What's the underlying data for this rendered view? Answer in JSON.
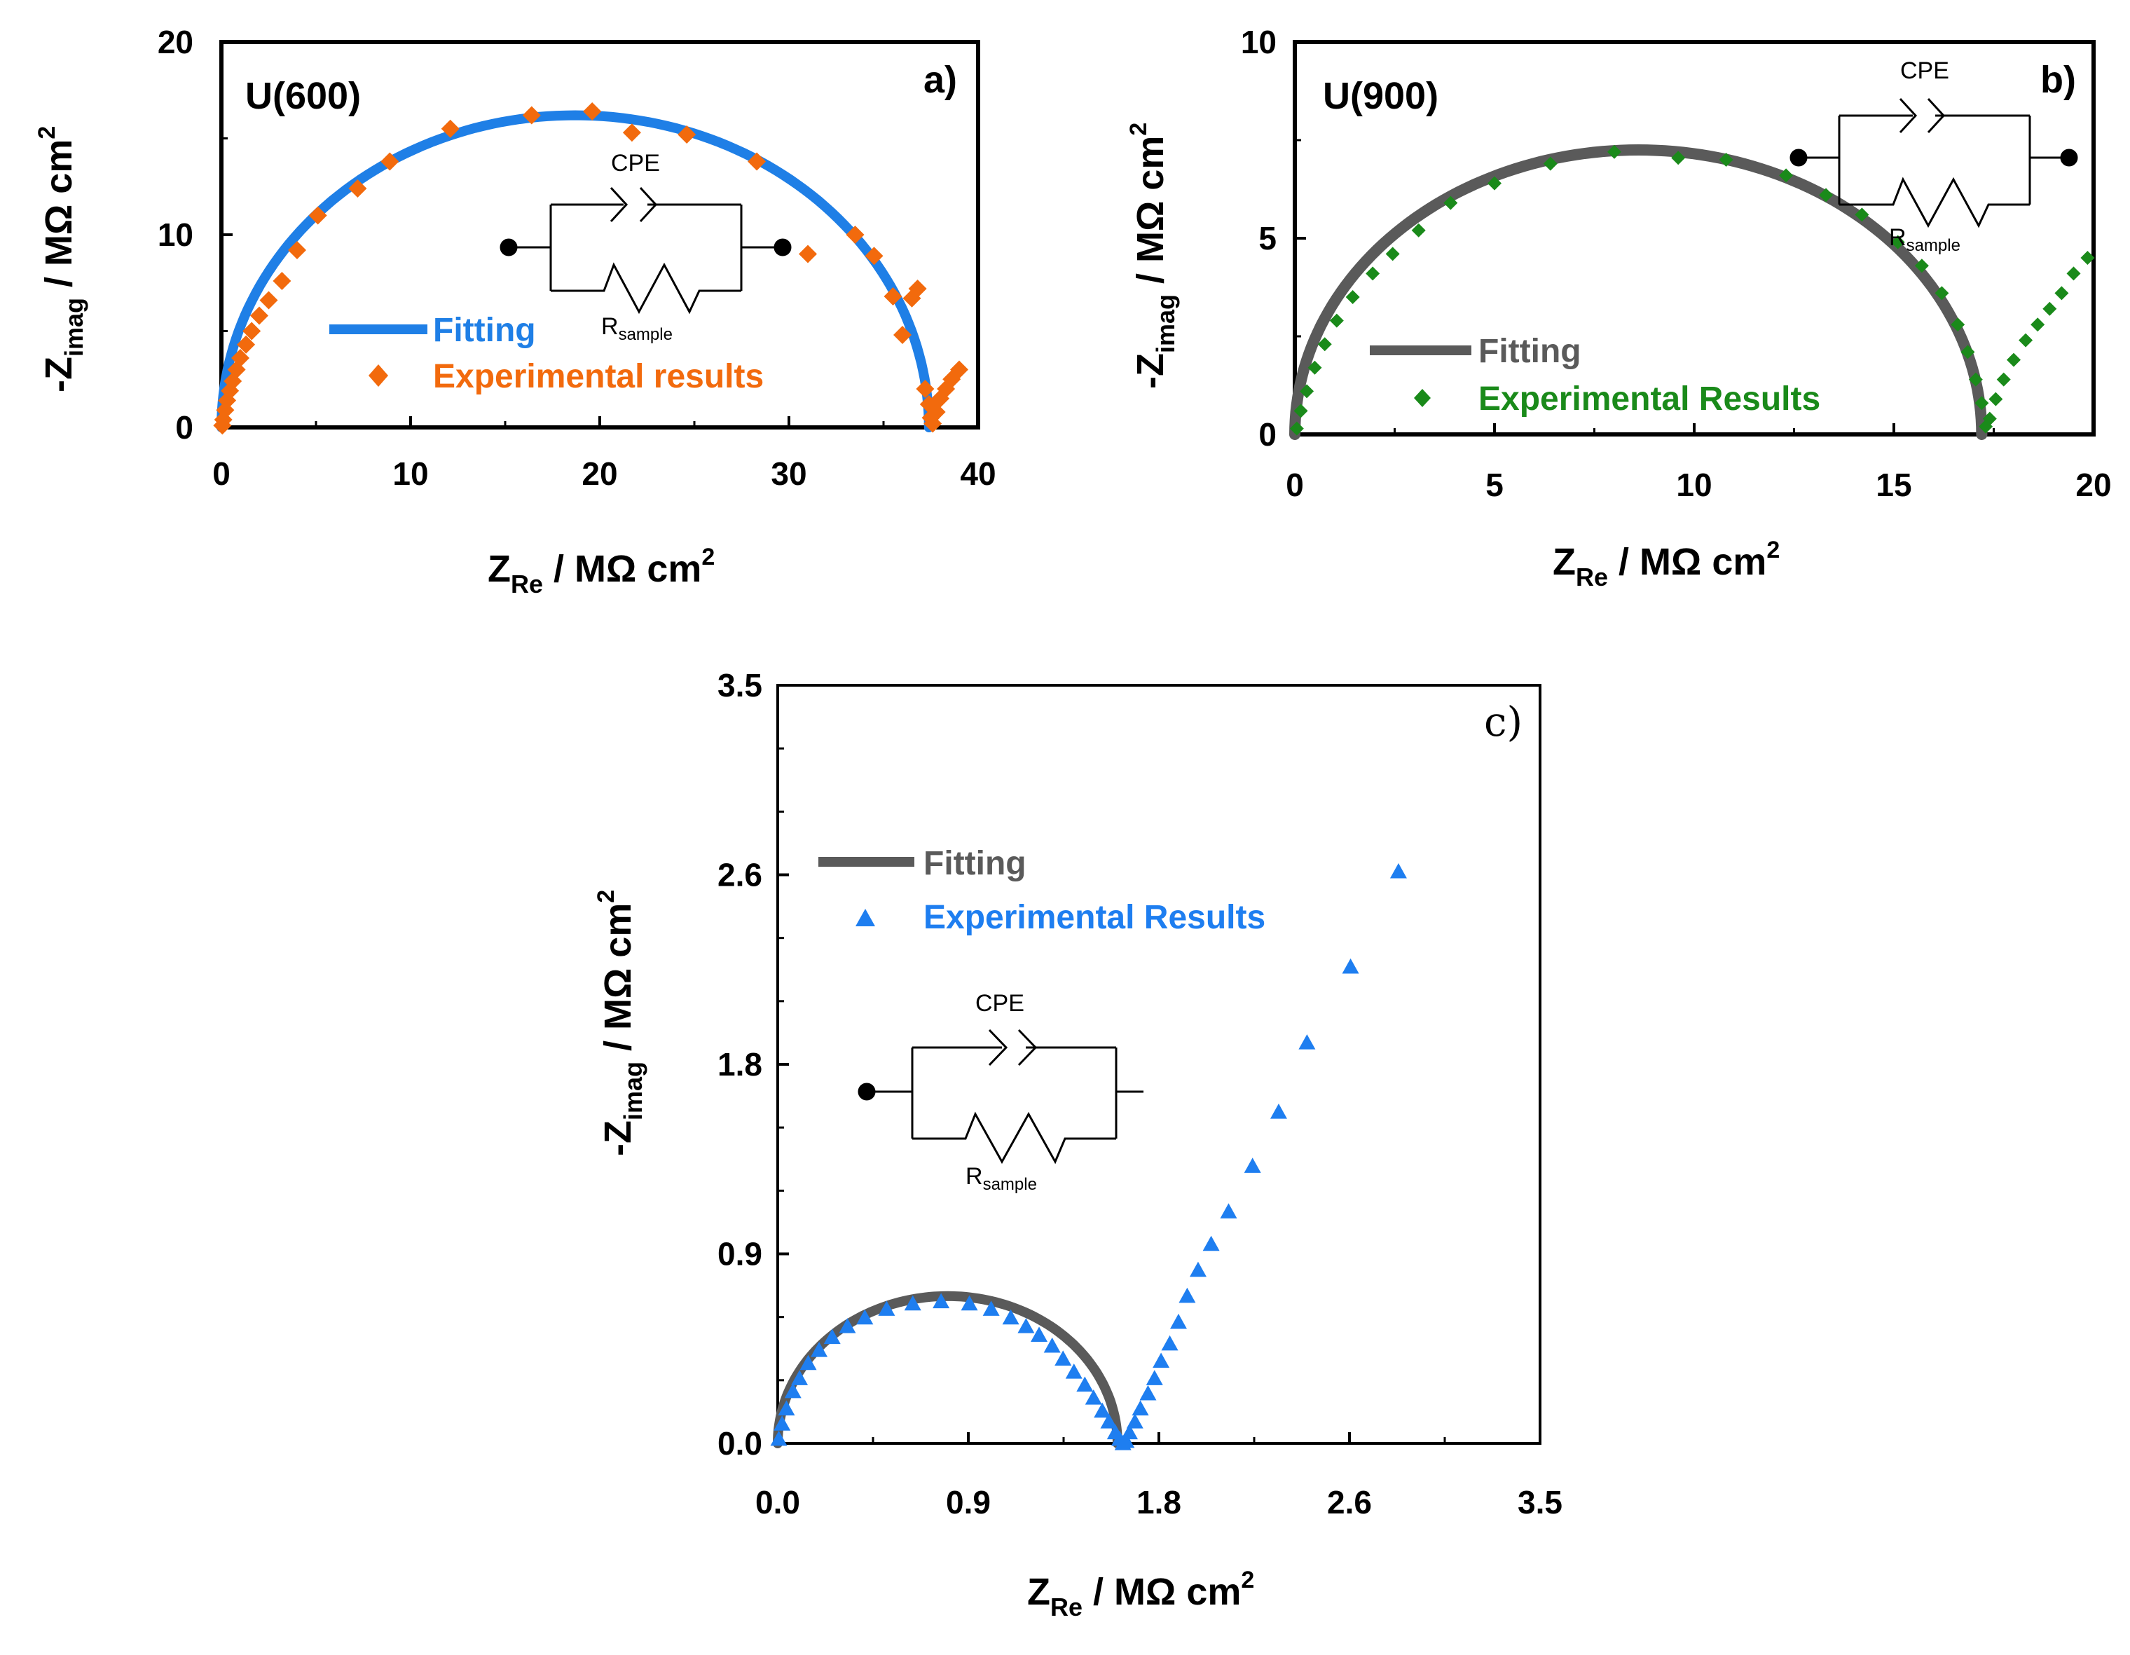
{
  "chart_data": [
    {
      "type": "scatter",
      "panel_label": "a)",
      "sample": "U(600)",
      "xlim": [
        0,
        40
      ],
      "ylim": [
        0,
        20
      ],
      "xticks": [
        "0",
        "10",
        "20",
        "30",
        "40"
      ],
      "yticks": [
        "0",
        "10",
        "20"
      ],
      "xlabel": {
        "main": "Z",
        "sub": "Re",
        "unit": " / MΩ cm",
        "sup": "2"
      },
      "ylabel": {
        "main": "-Z",
        "sub": "imag",
        "unit": " / MΩ cm",
        "sup": "2"
      },
      "fit": {
        "name": "Fitting",
        "color": "#1f7fe6",
        "center": 18.7,
        "radius": 18.7,
        "height": 16.2
      },
      "series": [
        {
          "name": "Experimental results",
          "color": "#f26a0d",
          "marker": "diamond",
          "points": [
            [
              0.05,
              0.1
            ],
            [
              0.1,
              0.4
            ],
            [
              0.2,
              0.9
            ],
            [
              0.3,
              1.4
            ],
            [
              0.45,
              1.9
            ],
            [
              0.6,
              2.4
            ],
            [
              0.8,
              3.0
            ],
            [
              1.0,
              3.6
            ],
            [
              1.3,
              4.3
            ],
            [
              1.6,
              5.0
            ],
            [
              2.0,
              5.8
            ],
            [
              2.5,
              6.6
            ],
            [
              3.2,
              7.6
            ],
            [
              4.0,
              9.2
            ],
            [
              5.1,
              11.0
            ],
            [
              7.2,
              12.4
            ],
            [
              8.9,
              13.8
            ],
            [
              12.1,
              15.5
            ],
            [
              16.4,
              16.2
            ],
            [
              19.6,
              16.4
            ],
            [
              21.7,
              15.3
            ],
            [
              24.6,
              15.2
            ],
            [
              28.3,
              13.8
            ],
            [
              31.0,
              9.0
            ],
            [
              33.5,
              10.0
            ],
            [
              34.5,
              8.9
            ],
            [
              35.5,
              6.8
            ],
            [
              36.0,
              4.8
            ],
            [
              36.5,
              6.7
            ],
            [
              36.8,
              7.2
            ],
            [
              37.2,
              2.0
            ],
            [
              37.4,
              1.2
            ],
            [
              37.5,
              0.5
            ],
            [
              37.6,
              0.2
            ],
            [
              37.8,
              0.8
            ],
            [
              38.0,
              1.5
            ],
            [
              38.3,
              2.0
            ],
            [
              38.6,
              2.5
            ],
            [
              39.0,
              3.0
            ]
          ]
        }
      ],
      "inset": {
        "element": "CPE",
        "resistor": {
          "main": "R",
          "sub": "sample"
        }
      }
    },
    {
      "type": "scatter",
      "panel_label": "b)",
      "sample": "U(900)",
      "xlim": [
        0,
        20
      ],
      "ylim": [
        0,
        10
      ],
      "xticks": [
        "0",
        "5",
        "10",
        "15",
        "20"
      ],
      "yticks": [
        "0",
        "5",
        "10"
      ],
      "xlabel": {
        "main": "Z",
        "sub": "Re",
        "unit": " / MΩ cm",
        "sup": "2"
      },
      "ylabel": {
        "main": "-Z",
        "sub": "imag",
        "unit": " / MΩ cm",
        "sup": "2"
      },
      "fit": {
        "name": "Fitting",
        "color": "#5a5a5a",
        "center": 8.6,
        "radius": 8.6,
        "height": 7.25
      },
      "series": [
        {
          "name": "Experimental Results",
          "color": "#1a8a1a",
          "marker": "diamond",
          "points": [
            [
              0.05,
              0.15
            ],
            [
              0.15,
              0.6
            ],
            [
              0.3,
              1.1
            ],
            [
              0.5,
              1.7
            ],
            [
              0.75,
              2.3
            ],
            [
              1.05,
              2.9
            ],
            [
              1.45,
              3.5
            ],
            [
              1.95,
              4.1
            ],
            [
              2.45,
              4.6
            ],
            [
              3.1,
              5.2
            ],
            [
              3.9,
              5.9
            ],
            [
              5.0,
              6.4
            ],
            [
              6.4,
              6.9
            ],
            [
              8.0,
              7.2
            ],
            [
              9.6,
              7.05
            ],
            [
              10.8,
              7.0
            ],
            [
              12.3,
              6.6
            ],
            [
              13.3,
              6.1
            ],
            [
              14.2,
              5.6
            ],
            [
              15.1,
              4.9
            ],
            [
              15.7,
              4.3
            ],
            [
              16.2,
              3.6
            ],
            [
              16.6,
              2.8
            ],
            [
              16.85,
              2.1
            ],
            [
              17.05,
              1.4
            ],
            [
              17.2,
              0.8
            ],
            [
              17.3,
              0.2
            ],
            [
              17.4,
              0.4
            ],
            [
              17.55,
              0.9
            ],
            [
              17.75,
              1.4
            ],
            [
              18.0,
              1.9
            ],
            [
              18.3,
              2.4
            ],
            [
              18.6,
              2.8
            ],
            [
              18.9,
              3.2
            ],
            [
              19.2,
              3.6
            ],
            [
              19.5,
              4.1
            ],
            [
              19.85,
              4.5
            ]
          ]
        }
      ],
      "inset": {
        "element": "CPE",
        "resistor": {
          "main": "R",
          "sub": "sample"
        }
      }
    },
    {
      "type": "scatter",
      "panel_label": "c)",
      "sample": "",
      "xlim": [
        0,
        3.5
      ],
      "ylim": [
        0,
        3.5
      ],
      "xticks": [
        "0.0",
        "0.9",
        "1.8",
        "2.6",
        "3.5"
      ],
      "yticks": [
        "0.0",
        "0.9",
        "1.8",
        "2.6",
        "3.5"
      ],
      "xlabel": {
        "main": "Z",
        "sub": "Re",
        "unit": " / MΩ cm",
        "sup": "2"
      },
      "ylabel": {
        "main": "-Z",
        "sub": "imag",
        "unit": " / MΩ cm",
        "sup": "2"
      },
      "fit": {
        "name": "Fitting",
        "color": "#5a5a5a",
        "center": 0.78,
        "radius": 0.78,
        "height": 0.68
      },
      "series": [
        {
          "name": "Experimental Results",
          "color": "#1e7ef0",
          "marker": "triangle",
          "points": [
            [
              0.005,
              0.02
            ],
            [
              0.02,
              0.09
            ],
            [
              0.04,
              0.16
            ],
            [
              0.07,
              0.24
            ],
            [
              0.1,
              0.3
            ],
            [
              0.14,
              0.37
            ],
            [
              0.19,
              0.43
            ],
            [
              0.25,
              0.49
            ],
            [
              0.32,
              0.54
            ],
            [
              0.4,
              0.58
            ],
            [
              0.5,
              0.62
            ],
            [
              0.62,
              0.645
            ],
            [
              0.75,
              0.655
            ],
            [
              0.88,
              0.645
            ],
            [
              0.98,
              0.62
            ],
            [
              1.07,
              0.58
            ],
            [
              1.14,
              0.54
            ],
            [
              1.2,
              0.5
            ],
            [
              1.26,
              0.45
            ],
            [
              1.31,
              0.39
            ],
            [
              1.36,
              0.33
            ],
            [
              1.41,
              0.27
            ],
            [
              1.45,
              0.21
            ],
            [
              1.49,
              0.15
            ],
            [
              1.52,
              0.1
            ],
            [
              1.55,
              0.05
            ],
            [
              1.57,
              0.02
            ],
            [
              1.585,
              0.0
            ],
            [
              1.6,
              0.01
            ],
            [
              1.615,
              0.05
            ],
            [
              1.64,
              0.1
            ],
            [
              1.665,
              0.16
            ],
            [
              1.7,
              0.23
            ],
            [
              1.73,
              0.3
            ],
            [
              1.76,
              0.38
            ],
            [
              1.8,
              0.46
            ],
            [
              1.84,
              0.56
            ],
            [
              1.88,
              0.68
            ],
            [
              1.93,
              0.8
            ],
            [
              1.99,
              0.92
            ],
            [
              2.07,
              1.07
            ],
            [
              2.18,
              1.28
            ],
            [
              2.3,
              1.53
            ],
            [
              2.43,
              1.85
            ],
            [
              2.63,
              2.2
            ],
            [
              2.85,
              2.64
            ]
          ]
        }
      ],
      "inset": {
        "element": "CPE",
        "resistor": {
          "main": "R",
          "sub": "sample"
        }
      }
    }
  ]
}
